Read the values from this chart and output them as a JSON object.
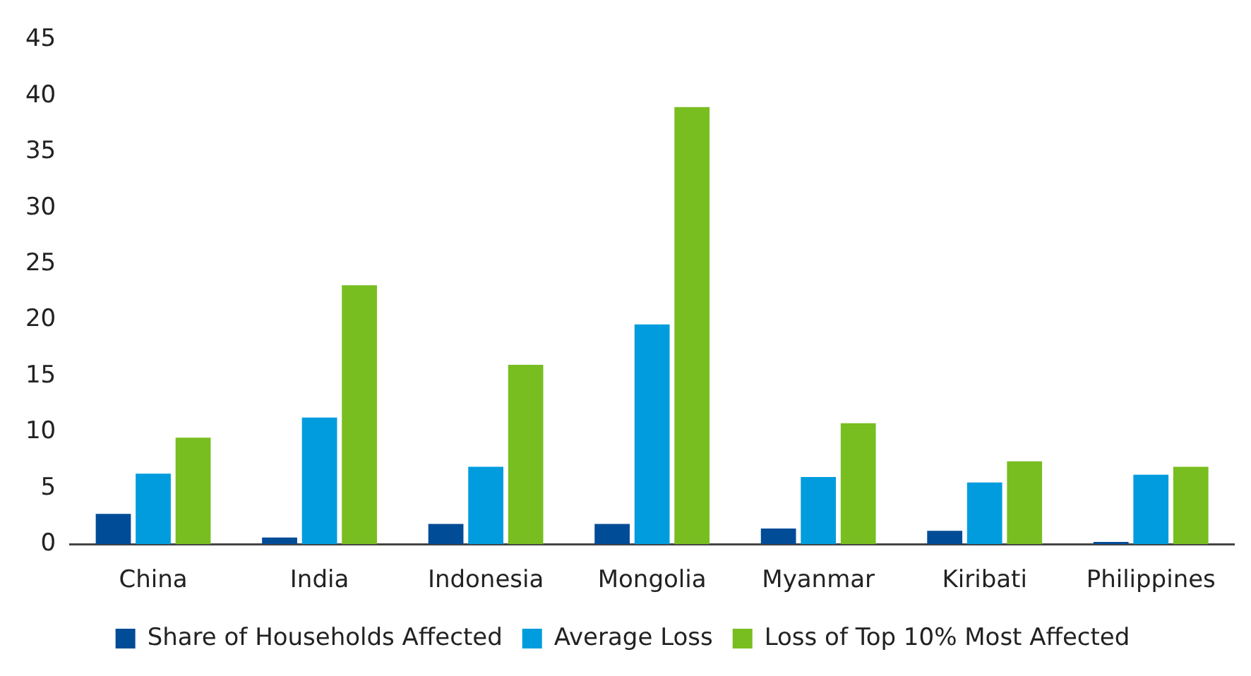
{
  "chart_data": {
    "type": "bar",
    "categories": [
      "China",
      "India",
      "Indonesia",
      "Mongolia",
      "Myanmar",
      "Kiribati",
      "Philippines"
    ],
    "series": [
      {
        "name": "Share of Households Affected",
        "color": "#004c97",
        "values": [
          2.7,
          0.6,
          1.8,
          1.8,
          1.4,
          1.2,
          0.2
        ]
      },
      {
        "name": "Average Loss",
        "color": "#009cde",
        "values": [
          6.3,
          11.3,
          6.9,
          19.6,
          6.0,
          5.5,
          6.2
        ]
      },
      {
        "name": "Loss of Top 10% Most Affected",
        "color": "#78be20",
        "values": [
          9.5,
          23.1,
          16.0,
          39.0,
          10.8,
          7.4,
          6.9
        ]
      }
    ],
    "ylim": [
      0,
      45
    ],
    "yticks": [
      0,
      5,
      10,
      15,
      20,
      25,
      30,
      35,
      40,
      45
    ],
    "grid": false,
    "legend": "bottom"
  }
}
